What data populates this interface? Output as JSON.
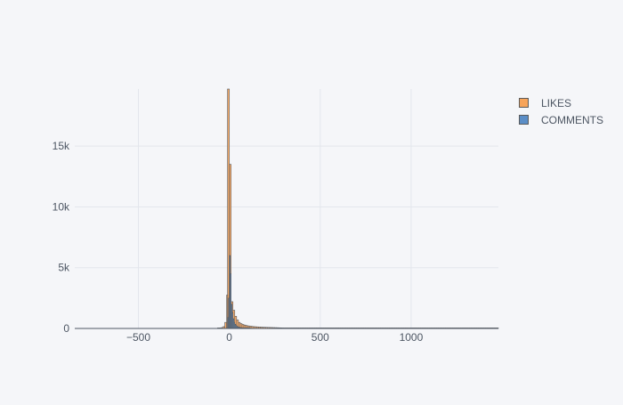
{
  "chart_data": {
    "type": "bar",
    "barmode": "overlay",
    "xlim": [
      -850,
      1480
    ],
    "ylim": [
      0,
      19700
    ],
    "x_ticks": [
      -500,
      0,
      500,
      1000
    ],
    "x_tick_labels": [
      "−500",
      "0",
      "500",
      "1000"
    ],
    "y_ticks": [
      0,
      5000,
      10000,
      15000
    ],
    "y_tick_labels": [
      "0",
      "5k",
      "10k",
      "15k"
    ],
    "grid": true,
    "legend_position": "right-top",
    "series": [
      {
        "name": "LIKES",
        "color": "#f7a45a",
        "bin_width": 10,
        "bins": [
          [
            -60,
            10
          ],
          [
            -50,
            30
          ],
          [
            -40,
            70
          ],
          [
            -30,
            150
          ],
          [
            -20,
            500
          ],
          [
            -10,
            2750
          ],
          [
            -5,
            19700
          ],
          [
            5,
            13500
          ],
          [
            15,
            2200
          ],
          [
            25,
            1500
          ],
          [
            35,
            1000
          ],
          [
            45,
            700
          ],
          [
            55,
            500
          ],
          [
            65,
            400
          ],
          [
            75,
            330
          ],
          [
            85,
            280
          ],
          [
            95,
            240
          ],
          [
            105,
            210
          ],
          [
            115,
            190
          ],
          [
            125,
            170
          ],
          [
            135,
            150
          ],
          [
            145,
            140
          ],
          [
            155,
            130
          ],
          [
            165,
            120
          ],
          [
            175,
            110
          ],
          [
            185,
            100
          ],
          [
            195,
            95
          ],
          [
            205,
            90
          ],
          [
            215,
            85
          ],
          [
            225,
            80
          ],
          [
            235,
            75
          ],
          [
            245,
            70
          ],
          [
            255,
            65
          ],
          [
            265,
            60
          ],
          [
            275,
            55
          ],
          [
            285,
            50
          ],
          [
            295,
            45
          ],
          [
            305,
            40
          ],
          [
            315,
            38
          ],
          [
            325,
            35
          ],
          [
            335,
            32
          ],
          [
            345,
            30
          ],
          [
            355,
            28
          ],
          [
            365,
            26
          ],
          [
            375,
            25
          ],
          [
            385,
            24
          ],
          [
            395,
            23
          ],
          [
            405,
            22
          ],
          [
            415,
            21
          ],
          [
            425,
            20
          ],
          [
            435,
            20
          ],
          [
            445,
            20
          ],
          [
            455,
            20
          ],
          [
            465,
            20
          ],
          [
            475,
            20
          ],
          [
            485,
            20
          ],
          [
            495,
            20
          ],
          [
            505,
            20
          ],
          [
            515,
            20
          ],
          [
            525,
            20
          ],
          [
            535,
            20
          ],
          [
            545,
            20
          ],
          [
            555,
            20
          ],
          [
            565,
            20
          ],
          [
            575,
            20
          ],
          [
            585,
            20
          ],
          [
            595,
            20
          ],
          [
            605,
            20
          ],
          [
            615,
            20
          ],
          [
            625,
            20
          ],
          [
            635,
            20
          ],
          [
            645,
            20
          ],
          [
            655,
            20
          ],
          [
            665,
            20
          ],
          [
            675,
            20
          ],
          [
            685,
            20
          ],
          [
            695,
            20
          ],
          [
            705,
            20
          ],
          [
            715,
            20
          ],
          [
            725,
            20
          ],
          [
            735,
            20
          ],
          [
            745,
            20
          ],
          [
            755,
            20
          ],
          [
            765,
            20
          ],
          [
            775,
            20
          ],
          [
            785,
            20
          ],
          [
            795,
            20
          ],
          [
            805,
            20
          ],
          [
            815,
            20
          ],
          [
            825,
            20
          ],
          [
            835,
            20
          ],
          [
            845,
            20
          ],
          [
            855,
            20
          ],
          [
            865,
            20
          ],
          [
            875,
            20
          ],
          [
            885,
            20
          ],
          [
            895,
            20
          ],
          [
            905,
            20
          ],
          [
            915,
            20
          ],
          [
            925,
            20
          ],
          [
            935,
            20
          ],
          [
            945,
            20
          ],
          [
            955,
            20
          ],
          [
            965,
            20
          ],
          [
            975,
            20
          ],
          [
            985,
            20
          ],
          [
            995,
            20
          ],
          [
            1005,
            20
          ],
          [
            1015,
            20
          ],
          [
            1025,
            20
          ],
          [
            1035,
            20
          ],
          [
            1045,
            20
          ],
          [
            1055,
            20
          ],
          [
            1065,
            20
          ],
          [
            1075,
            20
          ],
          [
            1085,
            20
          ],
          [
            1095,
            20
          ],
          [
            1105,
            20
          ],
          [
            1115,
            20
          ],
          [
            1125,
            20
          ],
          [
            1135,
            20
          ],
          [
            1145,
            20
          ],
          [
            1155,
            20
          ],
          [
            1165,
            20
          ],
          [
            1175,
            20
          ],
          [
            1185,
            20
          ],
          [
            1195,
            20
          ],
          [
            1205,
            20
          ],
          [
            1215,
            20
          ],
          [
            1225,
            20
          ],
          [
            1235,
            20
          ],
          [
            1245,
            20
          ],
          [
            1255,
            20
          ],
          [
            1265,
            20
          ],
          [
            1275,
            20
          ],
          [
            1285,
            20
          ],
          [
            1295,
            20
          ],
          [
            1305,
            20
          ],
          [
            1315,
            20
          ],
          [
            1325,
            20
          ],
          [
            1335,
            20
          ],
          [
            1345,
            20
          ],
          [
            1355,
            20
          ],
          [
            1365,
            20
          ],
          [
            1375,
            20
          ],
          [
            1385,
            20
          ],
          [
            1395,
            20
          ],
          [
            1405,
            20
          ],
          [
            1415,
            20
          ],
          [
            1425,
            20
          ],
          [
            1435,
            20
          ],
          [
            1445,
            20
          ],
          [
            1455,
            20
          ],
          [
            1465,
            20
          ],
          [
            1475,
            20
          ]
        ]
      },
      {
        "name": "COMMENTS",
        "color": "#5b8ec7",
        "bin_width": 5,
        "bins": [
          [
            -7.5,
            900
          ],
          [
            -2.5,
            2500
          ],
          [
            2.5,
            6000
          ],
          [
            7.5,
            4500
          ],
          [
            12.5,
            2000
          ],
          [
            17.5,
            1300
          ],
          [
            22.5,
            800
          ],
          [
            27.5,
            500
          ],
          [
            32.5,
            350
          ],
          [
            37.5,
            250
          ],
          [
            42.5,
            180
          ],
          [
            47.5,
            140
          ],
          [
            52.5,
            110
          ],
          [
            57.5,
            90
          ],
          [
            62.5,
            70
          ],
          [
            67.5,
            60
          ],
          [
            72.5,
            50
          ],
          [
            77.5,
            45
          ],
          [
            82.5,
            40
          ],
          [
            87.5,
            35
          ],
          [
            92.5,
            30
          ],
          [
            97.5,
            28
          ],
          [
            102.5,
            25
          ],
          [
            107.5,
            22
          ],
          [
            112.5,
            20
          ]
        ]
      }
    ]
  }
}
